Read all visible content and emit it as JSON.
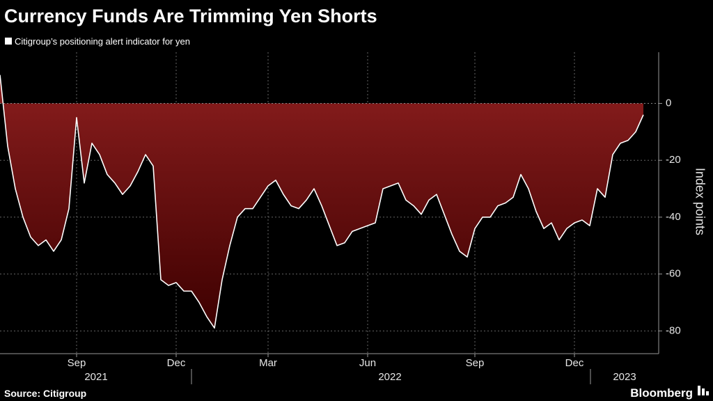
{
  "chart_data": {
    "type": "area",
    "title": "Currency Funds Are Trimming Yen Shorts",
    "legend": "Citigroup’s positioning alert indicator for yen",
    "y_label": "Index points",
    "source": "Source: Citigroup",
    "brand": "Bloomberg",
    "line_color": "#ffffff",
    "fill_top_color": "#8b1e1e",
    "fill_bottom_color": "#3d0000",
    "categories": [
      null,
      null,
      null,
      null,
      null,
      null,
      null,
      null,
      null,
      null,
      "Sep",
      null,
      null,
      null,
      null,
      null,
      null,
      null,
      null,
      null,
      null,
      null,
      null,
      "Dec",
      null,
      null,
      null,
      null,
      null,
      null,
      null,
      null,
      null,
      null,
      null,
      "Mar",
      null,
      null,
      null,
      null,
      null,
      null,
      null,
      null,
      null,
      null,
      null,
      null,
      "Jun",
      null,
      null,
      null,
      null,
      null,
      null,
      null,
      null,
      null,
      null,
      null,
      null,
      null,
      "Sep",
      null,
      null,
      null,
      null,
      null,
      null,
      null,
      null,
      null,
      null,
      null,
      null,
      "Dec",
      null,
      null,
      null,
      null,
      null,
      null,
      null,
      null,
      null
    ],
    "x_year_labels": [
      "2021",
      "2022",
      "2023"
    ],
    "values": [
      10,
      -15,
      -30,
      -40,
      -47,
      -50,
      -48,
      -52,
      -48,
      -37,
      -5,
      -28,
      -14,
      -18,
      -25,
      -28,
      -32,
      -29,
      -24,
      -18,
      -22,
      -62,
      -64,
      -63,
      -66,
      -66,
      -70,
      -75,
      -79,
      -62,
      -50,
      -40,
      -37,
      -37,
      -33,
      -29,
      -27,
      -32,
      -36,
      -37,
      -34,
      -30,
      -36,
      -43,
      -50,
      -49,
      -45,
      -44,
      -43,
      -42,
      -30,
      -29,
      -28,
      -34,
      -36,
      -39,
      -34,
      -32,
      -39,
      -46,
      -52,
      -54,
      -44,
      -40,
      -40,
      -36,
      -35,
      -33,
      -25,
      -30,
      -38,
      -44,
      -42,
      -48,
      -44,
      -42,
      -41,
      -43,
      -30,
      -33,
      -18,
      -14,
      -13,
      -10,
      -4
    ],
    "ylim": [
      -88,
      18
    ],
    "yticks": [
      0,
      -20,
      -40,
      -60,
      -80
    ],
    "grid": true
  }
}
